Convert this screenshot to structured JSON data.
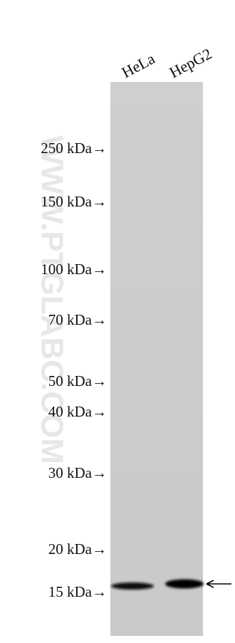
{
  "lanes": [
    "HeLa",
    "HepG2"
  ],
  "markers": [
    "250 kDa→",
    "150 kDa→",
    "100 kDa→",
    "70 kDa→",
    "50 kDa→",
    "40 kDa→",
    "30 kDa→",
    "20 kDa→",
    "15 kDa→"
  ],
  "watermark": "WWW.PTGLABC.COM"
}
